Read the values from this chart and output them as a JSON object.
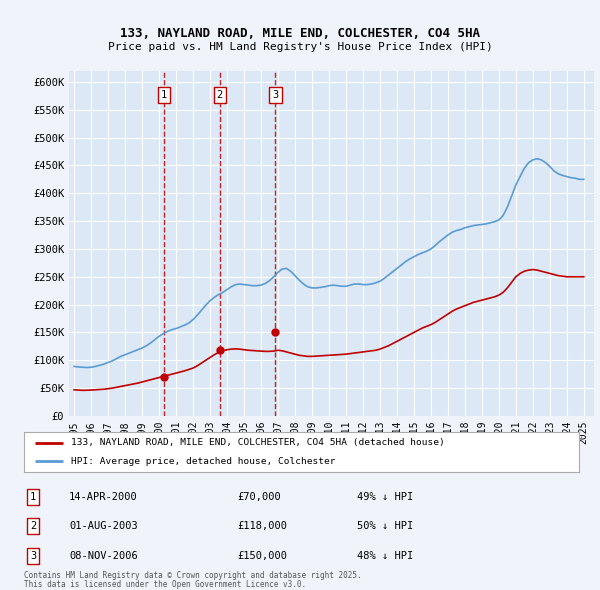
{
  "title1": "133, NAYLAND ROAD, MILE END, COLCHESTER, CO4 5HA",
  "title2": "Price paid vs. HM Land Registry's House Price Index (HPI)",
  "background_color": "#f0f4fa",
  "plot_bg_color": "#dce8f5",
  "ylim": [
    0,
    620000
  ],
  "yticks": [
    0,
    50000,
    100000,
    150000,
    200000,
    250000,
    300000,
    350000,
    400000,
    450000,
    500000,
    550000,
    600000
  ],
  "ytick_labels": [
    "£0",
    "£50K",
    "£100K",
    "£150K",
    "£200K",
    "£250K",
    "£300K",
    "£350K",
    "£400K",
    "£450K",
    "£500K",
    "£550K",
    "£600K"
  ],
  "sale_dates_num": [
    2000.29,
    2003.58,
    2006.85
  ],
  "sale_prices": [
    70000,
    118000,
    150000
  ],
  "sale_labels": [
    "1",
    "2",
    "3"
  ],
  "sale_date_strs": [
    "14-APR-2000",
    "01-AUG-2003",
    "08-NOV-2006"
  ],
  "sale_price_strs": [
    "£70,000",
    "£118,000",
    "£150,000"
  ],
  "sale_hpi_strs": [
    "49% ↓ HPI",
    "50% ↓ HPI",
    "48% ↓ HPI"
  ],
  "legend_line1": "133, NAYLAND ROAD, MILE END, COLCHESTER, CO4 5HA (detached house)",
  "legend_line2": "HPI: Average price, detached house, Colchester",
  "footer1": "Contains HM Land Registry data © Crown copyright and database right 2025.",
  "footer2": "This data is licensed under the Open Government Licence v3.0.",
  "hpi_color": "#5b9bd5",
  "price_color": "#c00000",
  "vline_color": "#c00000",
  "marker_color": "#c00000",
  "hpi_years": [
    1995.0,
    1995.25,
    1995.5,
    1995.75,
    1996.0,
    1996.25,
    1996.5,
    1996.75,
    1997.0,
    1997.25,
    1997.5,
    1997.75,
    1998.0,
    1998.25,
    1998.5,
    1998.75,
    1999.0,
    1999.25,
    1999.5,
    1999.75,
    2000.0,
    2000.25,
    2000.5,
    2000.75,
    2001.0,
    2001.25,
    2001.5,
    2001.75,
    2002.0,
    2002.25,
    2002.5,
    2002.75,
    2003.0,
    2003.25,
    2003.5,
    2003.75,
    2004.0,
    2004.25,
    2004.5,
    2004.75,
    2005.0,
    2005.25,
    2005.5,
    2005.75,
    2006.0,
    2006.25,
    2006.5,
    2006.75,
    2007.0,
    2007.25,
    2007.5,
    2007.75,
    2008.0,
    2008.25,
    2008.5,
    2008.75,
    2009.0,
    2009.25,
    2009.5,
    2009.75,
    2010.0,
    2010.25,
    2010.5,
    2010.75,
    2011.0,
    2011.25,
    2011.5,
    2011.75,
    2012.0,
    2012.25,
    2012.5,
    2012.75,
    2013.0,
    2013.25,
    2013.5,
    2013.75,
    2014.0,
    2014.25,
    2014.5,
    2014.75,
    2015.0,
    2015.25,
    2015.5,
    2015.75,
    2016.0,
    2016.25,
    2016.5,
    2016.75,
    2017.0,
    2017.25,
    2017.5,
    2017.75,
    2018.0,
    2018.25,
    2018.5,
    2018.75,
    2019.0,
    2019.25,
    2019.5,
    2019.75,
    2020.0,
    2020.25,
    2020.5,
    2020.75,
    2021.0,
    2021.25,
    2021.5,
    2021.75,
    2022.0,
    2022.25,
    2022.5,
    2022.75,
    2023.0,
    2023.25,
    2023.5,
    2023.75,
    2024.0,
    2024.25,
    2024.5,
    2024.75,
    2025.0
  ],
  "hpi_values": [
    89000,
    88000,
    87500,
    87000,
    87500,
    89000,
    91000,
    93000,
    96000,
    99000,
    103000,
    107000,
    110000,
    113000,
    116000,
    119000,
    122000,
    126000,
    131000,
    137000,
    143000,
    148000,
    152000,
    155000,
    157000,
    160000,
    163000,
    167000,
    173000,
    181000,
    190000,
    199000,
    207000,
    213000,
    218000,
    222000,
    227000,
    232000,
    236000,
    237000,
    236000,
    235000,
    234000,
    234000,
    235000,
    238000,
    243000,
    250000,
    258000,
    264000,
    265000,
    260000,
    252000,
    244000,
    237000,
    232000,
    230000,
    230000,
    231000,
    232000,
    234000,
    235000,
    234000,
    233000,
    233000,
    235000,
    237000,
    237000,
    236000,
    236000,
    237000,
    239000,
    242000,
    247000,
    253000,
    259000,
    265000,
    271000,
    277000,
    282000,
    286000,
    290000,
    293000,
    296000,
    300000,
    306000,
    313000,
    319000,
    325000,
    330000,
    333000,
    335000,
    338000,
    340000,
    342000,
    343000,
    344000,
    345000,
    347000,
    349000,
    352000,
    360000,
    375000,
    395000,
    415000,
    430000,
    445000,
    455000,
    460000,
    462000,
    460000,
    455000,
    448000,
    440000,
    435000,
    432000,
    430000,
    428000,
    427000,
    425000,
    425000
  ],
  "price_years": [
    1995.0,
    1995.25,
    1995.5,
    1995.75,
    1996.0,
    1996.25,
    1996.5,
    1996.75,
    1997.0,
    1997.25,
    1997.5,
    1997.75,
    1998.0,
    1998.25,
    1998.5,
    1998.75,
    1999.0,
    1999.25,
    1999.5,
    1999.75,
    2000.0,
    2000.25,
    2000.5,
    2000.75,
    2001.0,
    2001.25,
    2001.5,
    2001.75,
    2002.0,
    2002.25,
    2002.5,
    2002.75,
    2003.0,
    2003.25,
    2003.5,
    2003.75,
    2004.0,
    2004.25,
    2004.5,
    2004.75,
    2005.0,
    2005.25,
    2005.5,
    2005.75,
    2006.0,
    2006.25,
    2006.5,
    2006.75,
    2007.0,
    2007.25,
    2007.5,
    2007.75,
    2008.0,
    2008.25,
    2008.5,
    2008.75,
    2009.0,
    2009.25,
    2009.5,
    2009.75,
    2010.0,
    2010.25,
    2010.5,
    2010.75,
    2011.0,
    2011.25,
    2011.5,
    2011.75,
    2012.0,
    2012.25,
    2012.5,
    2012.75,
    2013.0,
    2013.25,
    2013.5,
    2013.75,
    2014.0,
    2014.25,
    2014.5,
    2014.75,
    2015.0,
    2015.25,
    2015.5,
    2015.75,
    2016.0,
    2016.25,
    2016.5,
    2016.75,
    2017.0,
    2017.25,
    2017.5,
    2017.75,
    2018.0,
    2018.25,
    2018.5,
    2018.75,
    2019.0,
    2019.25,
    2019.5,
    2019.75,
    2020.0,
    2020.25,
    2020.5,
    2020.75,
    2021.0,
    2021.25,
    2021.5,
    2021.75,
    2022.0,
    2022.25,
    2022.5,
    2022.75,
    2023.0,
    2023.25,
    2023.5,
    2023.75,
    2024.0,
    2024.25,
    2024.5,
    2024.75,
    2025.0
  ],
  "price_values": [
    47000,
    46500,
    46000,
    46200,
    46500,
    47000,
    47500,
    48000,
    49000,
    50000,
    51500,
    53000,
    54500,
    56000,
    57500,
    59000,
    61000,
    63000,
    65000,
    67000,
    69000,
    71000,
    73000,
    75000,
    77000,
    79000,
    81000,
    83500,
    86000,
    90000,
    95000,
    100000,
    105000,
    110000,
    114000,
    117000,
    119000,
    120000,
    120500,
    120000,
    119000,
    118000,
    117500,
    117000,
    116500,
    116000,
    116000,
    116500,
    118000,
    117000,
    115000,
    113000,
    111000,
    109000,
    108000,
    107000,
    107000,
    107500,
    108000,
    108500,
    109000,
    109500,
    110000,
    110500,
    111000,
    112000,
    113000,
    114000,
    115000,
    116000,
    117000,
    118000,
    120000,
    123000,
    126000,
    130000,
    134000,
    138000,
    142000,
    146000,
    150000,
    154000,
    158000,
    161000,
    164000,
    168000,
    173000,
    178000,
    183000,
    188000,
    192000,
    195000,
    198000,
    201000,
    204000,
    206000,
    208000,
    210000,
    212000,
    214000,
    217000,
    222000,
    230000,
    240000,
    250000,
    256000,
    260000,
    262000,
    263000,
    262000,
    260000,
    258000,
    256000,
    254000,
    252000,
    251000,
    250000,
    250000,
    250000,
    250000,
    250000
  ]
}
